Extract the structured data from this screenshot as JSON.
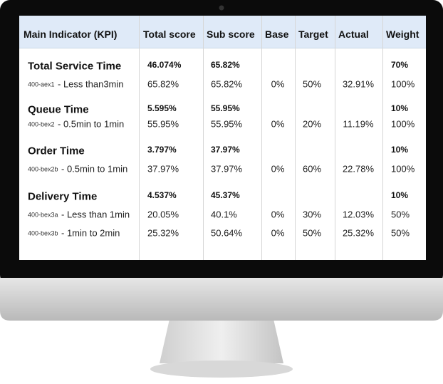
{
  "table": {
    "header": [
      "Main Indicator (KPI)",
      "Total score",
      "Sub score",
      "Base",
      "Target",
      "Actual",
      "Weight"
    ],
    "groups": [
      {
        "title": "Total Service Time",
        "total": "46.074%",
        "sub": "65.82%",
        "weight": "70%",
        "items": [
          {
            "code": "400-aex1",
            "label": "- Less than3min",
            "total": "65.82%",
            "sub": "65.82%",
            "base": "0%",
            "target": "50%",
            "actual": "32.91%",
            "weight": "100%"
          }
        ]
      },
      {
        "title": "Queue Time",
        "total": "5.595%",
        "sub": "55.95%",
        "weight": "10%",
        "items": [
          {
            "code": "400-bex2",
            "label": "- 0.5min to 1min",
            "total": "55.95%",
            "sub": "55.95%",
            "base": "0%",
            "target": "20%",
            "actual": "11.19%",
            "weight": "100%"
          }
        ]
      },
      {
        "title": "Order Time",
        "total": "3.797%",
        "sub": "37.97%",
        "weight": "10%",
        "items": [
          {
            "code": "400-bex2b",
            "label": "- 0.5min to 1min",
            "total": "37.97%",
            "sub": "37.97%",
            "base": "0%",
            "target": "60%",
            "actual": "22.78%",
            "weight": "100%"
          }
        ]
      },
      {
        "title": "Delivery Time",
        "total": "4.537%",
        "sub": "45.37%",
        "weight": "10%",
        "items": [
          {
            "code": "400-bex3a",
            "label": "- Less than 1min",
            "total": "20.05%",
            "sub": "40.1%",
            "base": "0%",
            "target": "30%",
            "actual": "12.03%",
            "weight": "50%"
          },
          {
            "code": "400-bex3b",
            "label": "- 1min to 2min",
            "total": "25.32%",
            "sub": "50.64%",
            "base": "0%",
            "target": "50%",
            "actual": "25.32%",
            "weight": "50%"
          }
        ]
      }
    ]
  }
}
